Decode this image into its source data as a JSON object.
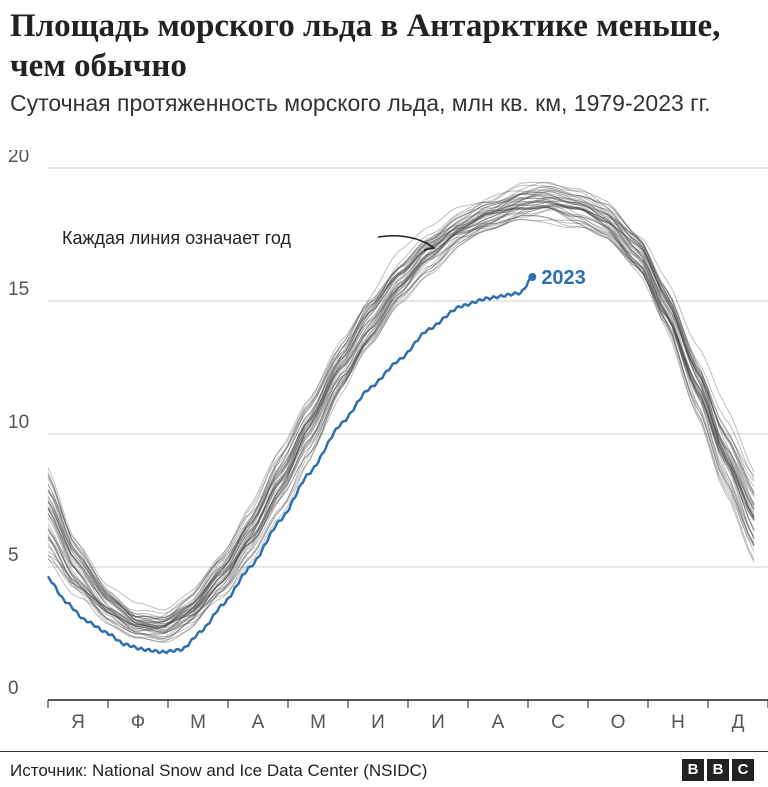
{
  "title": "Площадь морского льда в Антарктике меньше, чем обычно",
  "subtitle": "Суточная протяженность морского льда, млн кв. км, 1979-2023 гг.",
  "annotation": "Каждая линия означает год",
  "source": "Источник: National Snow and Ice Data Center (NSIDC)",
  "logo_letters": [
    "B",
    "B",
    "C"
  ],
  "colors": {
    "highlight": "#2f6fad",
    "years": "#444444",
    "grid": "#cccccc",
    "axis": "#222222"
  },
  "chart_data": {
    "type": "line",
    "xlabel": "",
    "ylabel": "",
    "ylim": [
      0,
      20
    ],
    "yticks": [
      0,
      5,
      10,
      15,
      20
    ],
    "month_labels": [
      "Я",
      "Ф",
      "М",
      "А",
      "М",
      "И",
      "И",
      "А",
      "С",
      "О",
      "Н",
      "Д"
    ],
    "x_unit": "day of year",
    "xlim": [
      1,
      365
    ],
    "grid": true,
    "typical_year_envelope": {
      "days": [
        1,
        15,
        32,
        46,
        60,
        74,
        91,
        105,
        121,
        135,
        152,
        166,
        182,
        196,
        213,
        227,
        244,
        258,
        274,
        288,
        305,
        319,
        335,
        349,
        365
      ],
      "median": [
        7.0,
        5.0,
        3.6,
        2.9,
        2.8,
        3.4,
        4.8,
        6.3,
        8.3,
        10.2,
        12.5,
        14.2,
        15.8,
        16.9,
        17.8,
        18.3,
        18.7,
        18.8,
        18.5,
        18.0,
        16.8,
        14.8,
        12.0,
        9.4,
        7.0
      ],
      "spread": [
        1.6,
        1.0,
        0.6,
        0.5,
        0.5,
        0.6,
        0.8,
        0.9,
        1.0,
        1.0,
        0.9,
        0.9,
        0.8,
        0.7,
        0.6,
        0.6,
        0.6,
        0.6,
        0.6,
        0.6,
        0.7,
        0.8,
        1.0,
        1.3,
        1.6
      ]
    },
    "series": [
      {
        "name": "2023",
        "days": [
          1,
          10,
          20,
          32,
          40,
          50,
          60,
          70,
          80,
          91,
          105,
          121,
          135,
          152,
          166,
          182,
          196,
          213,
          227,
          244,
          250
        ],
        "values": [
          4.6,
          3.7,
          3.0,
          2.5,
          2.1,
          1.9,
          1.8,
          1.9,
          2.6,
          3.6,
          5.0,
          6.8,
          8.5,
          10.4,
          11.7,
          12.8,
          13.9,
          14.8,
          15.1,
          15.3,
          15.9
        ]
      }
    ]
  }
}
